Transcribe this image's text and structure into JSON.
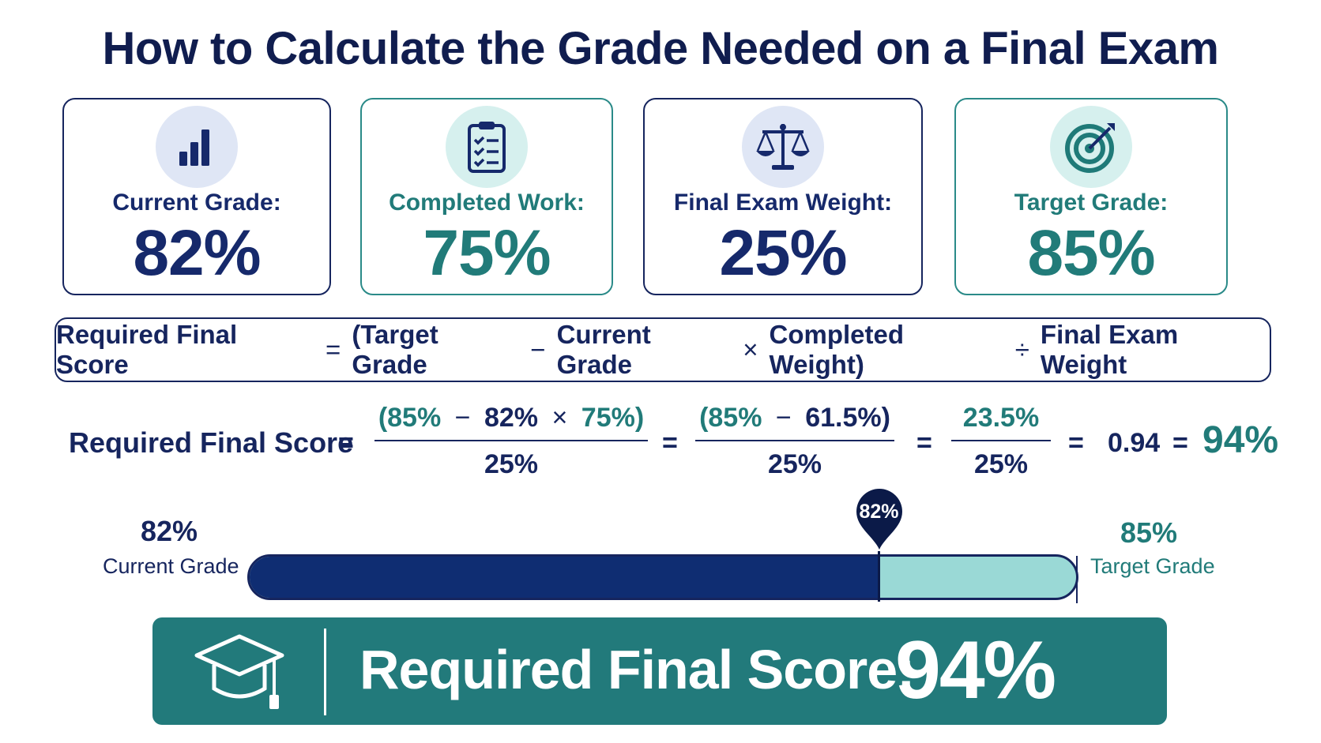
{
  "title": "How to Calculate the Grade Needed on a Final Exam",
  "cards": [
    {
      "label": "Current Grade:",
      "value": "82%",
      "icon": "bar-chart-icon"
    },
    {
      "label": "Completed Work:",
      "value": "75%",
      "icon": "clipboard-checklist-icon"
    },
    {
      "label": "Final Exam Weight:",
      "value": "25%",
      "icon": "scale-icon"
    },
    {
      "label": "Target Grade:",
      "value": "85%",
      "icon": "target-icon"
    }
  ],
  "formula": {
    "lhs": "Required Final Score",
    "eq": "=",
    "open": "(Target Grade",
    "minus": "−",
    "current": "Current Grade",
    "times": "×",
    "completed": "Completed Weight)",
    "divide": "÷",
    "weight": "Final Exam Weight"
  },
  "calculation": {
    "label": "Required Final Score",
    "eq": "=",
    "step1": {
      "target": "(85%",
      "minus": "−",
      "current": "82%",
      "times": "×",
      "completed": "75%)",
      "den": "25%"
    },
    "step2": {
      "target": "(85%",
      "minus": "−",
      "product": "61.5%)",
      "den": "25%"
    },
    "step3": {
      "num": "23.5%",
      "den": "25%"
    },
    "decimal": "0.94",
    "result": "94%"
  },
  "progress": {
    "current_value": "82%",
    "current_label": "Current Grade",
    "target_value": "85%",
    "target_label": "Target Grade",
    "marker_label": "82%",
    "fill_fraction": 0.76
  },
  "result_banner": {
    "label": "Required Final Score:",
    "value": "94%",
    "icon": "graduation-cap-icon"
  },
  "colors": {
    "navy": "#16255e",
    "teal": "#217b79",
    "banner": "#227a7b",
    "bar_fill": "#0f2d72",
    "bar_rest": "#9ad9d6"
  }
}
